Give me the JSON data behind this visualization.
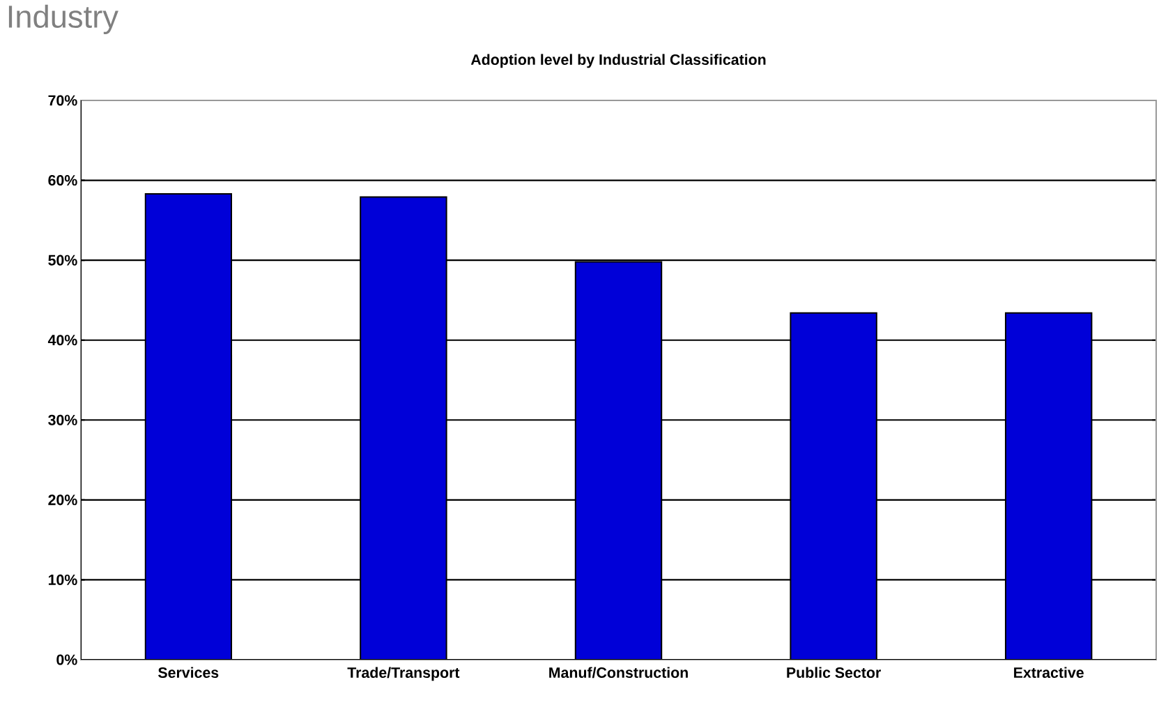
{
  "chart_data": {
    "type": "bar",
    "title": "Adoption level by Industrial Classification",
    "categories": [
      "Services",
      "Trade/Transport",
      "Manuf/Construction",
      "Public Sector",
      "Extractive"
    ],
    "values": [
      58.3,
      57.9,
      49.8,
      43.4,
      43.4
    ],
    "color": "#0000d8",
    "ylim": [
      0,
      70
    ],
    "yticks": [
      {
        "value": 0,
        "label": "0%"
      },
      {
        "value": 10,
        "label": "10%"
      },
      {
        "value": 20,
        "label": "20%"
      },
      {
        "value": 30,
        "label": "30%"
      },
      {
        "value": 40,
        "label": "40%"
      },
      {
        "value": 50,
        "label": "50%"
      },
      {
        "value": 60,
        "label": "60%"
      },
      {
        "value": 70,
        "label": "70%"
      }
    ],
    "grid": "y",
    "annotations": [
      "Industry"
    ]
  }
}
